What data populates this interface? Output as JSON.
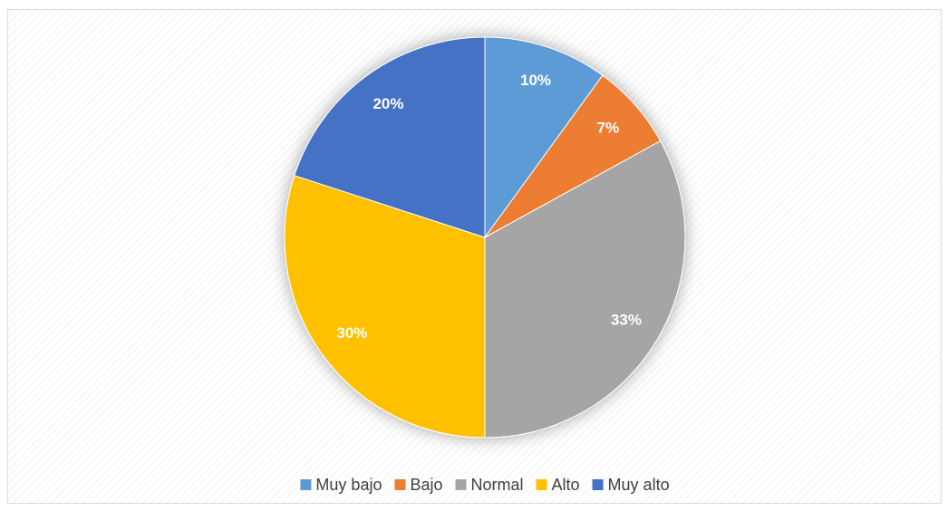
{
  "chart_data": {
    "type": "pie",
    "categories": [
      "Muy bajo",
      "Bajo",
      "Normal",
      "Alto",
      "Muy alto"
    ],
    "values": [
      10,
      7,
      33,
      30,
      20
    ],
    "value_labels": [
      "10%",
      "7%",
      "33%",
      "30%",
      "20%"
    ],
    "colors": [
      "#5b9bd5",
      "#ed7d31",
      "#a5a5a5",
      "#ffc000",
      "#4472c4"
    ],
    "legend": "bottom"
  }
}
